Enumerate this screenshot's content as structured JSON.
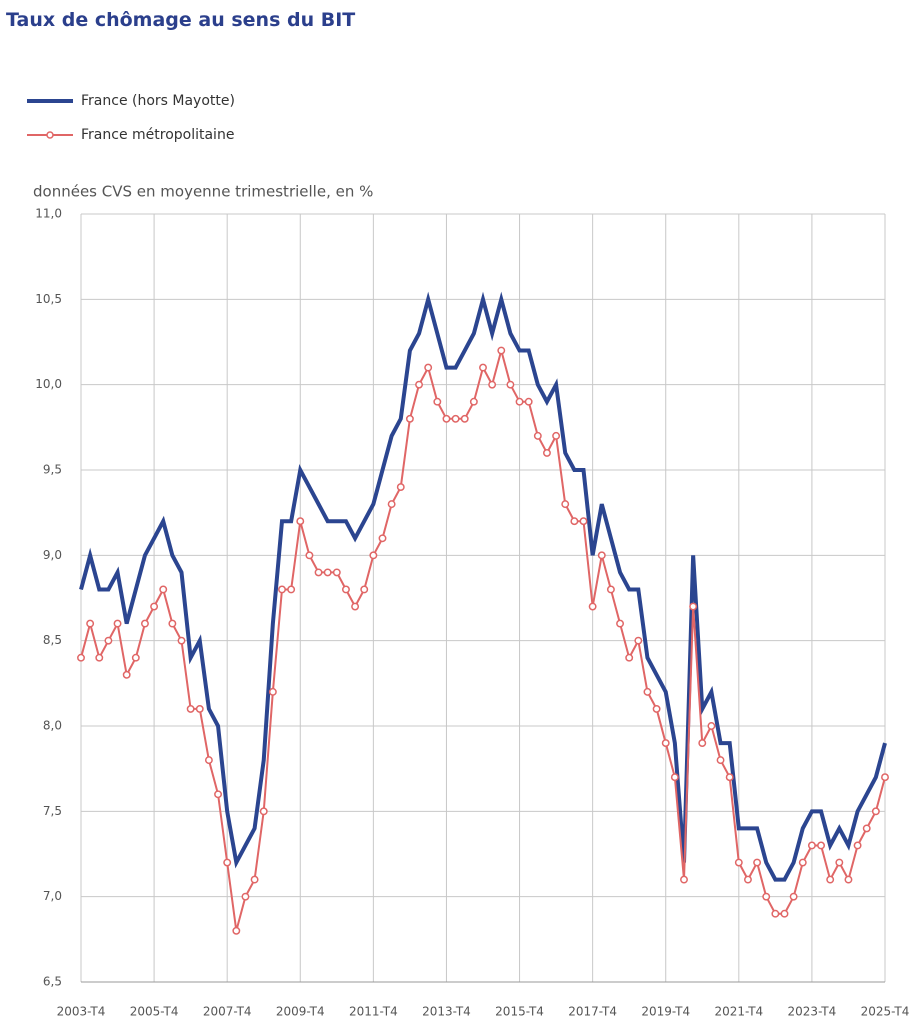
{
  "chart_data": {
    "type": "line",
    "title": "Taux de chômage au sens du BIT",
    "subtitle": "données CVS en moyenne trimestrielle, en %",
    "categories": [
      "2003-T4",
      null,
      null,
      null,
      null,
      null,
      null,
      null,
      "2005-T4",
      null,
      null,
      null,
      null,
      null,
      null,
      null,
      "2007-T4",
      null,
      null,
      null,
      null,
      null,
      null,
      null,
      "2009-T4",
      null,
      null,
      null,
      null,
      null,
      null,
      null,
      "2011-T4",
      null,
      null,
      null,
      null,
      null,
      null,
      null,
      "2013-T4",
      null,
      null,
      null,
      null,
      null,
      null,
      null,
      "2015-T4",
      null,
      null,
      null,
      null,
      null,
      null,
      null,
      "2017-T4",
      null,
      null,
      null,
      null,
      null,
      null,
      null,
      "2019-T4",
      null,
      null,
      null,
      null,
      null,
      null,
      null,
      "2021-T4",
      null,
      null,
      null,
      null,
      null,
      null,
      null,
      "2023-T4",
      null,
      null,
      null,
      null,
      null,
      null,
      null,
      "2025-T4"
    ],
    "series": [
      {
        "name": "France (hors Mayotte)",
        "color": "#2b4590",
        "values": [
          8.8,
          9.0,
          8.8,
          8.8,
          8.9,
          8.6,
          8.8,
          9.0,
          9.1,
          9.2,
          9.0,
          8.9,
          8.4,
          8.5,
          8.1,
          8.0,
          7.5,
          7.2,
          7.3,
          7.4,
          7.8,
          8.6,
          9.2,
          9.2,
          9.5,
          9.4,
          9.3,
          9.2,
          9.2,
          9.2,
          9.1,
          9.2,
          9.3,
          9.5,
          9.7,
          9.8,
          10.2,
          10.3,
          10.5,
          10.3,
          10.1,
          10.1,
          10.2,
          10.3,
          10.5,
          10.3,
          10.5,
          10.3,
          10.2,
          10.2,
          10.0,
          9.9,
          10.0,
          9.6,
          9.5,
          9.5,
          9.0,
          9.3,
          9.1,
          8.9,
          8.8,
          8.8,
          8.4,
          8.3,
          8.2,
          7.9,
          7.2,
          9.0,
          8.1,
          8.2,
          7.9,
          7.9,
          7.4,
          7.4,
          7.4,
          7.2,
          7.1,
          7.1,
          7.2,
          7.4,
          7.5,
          7.5,
          7.3,
          7.4,
          7.3,
          7.5,
          7.6,
          7.7,
          7.9
        ]
      },
      {
        "name": "France métropolitaine",
        "color": "#e06666",
        "values": [
          8.4,
          8.6,
          8.4,
          8.5,
          8.6,
          8.3,
          8.4,
          8.6,
          8.7,
          8.8,
          8.6,
          8.5,
          8.1,
          8.1,
          7.8,
          7.6,
          7.2,
          6.8,
          7.0,
          7.1,
          7.5,
          8.2,
          8.8,
          8.8,
          9.2,
          9.0,
          8.9,
          8.9,
          8.9,
          8.8,
          8.7,
          8.8,
          9.0,
          9.1,
          9.3,
          9.4,
          9.8,
          10.0,
          10.1,
          9.9,
          9.8,
          9.8,
          9.8,
          9.9,
          10.1,
          10.0,
          10.2,
          10.0,
          9.9,
          9.9,
          9.7,
          9.6,
          9.7,
          9.3,
          9.2,
          9.2,
          8.7,
          9.0,
          8.8,
          8.6,
          8.4,
          8.5,
          8.2,
          8.1,
          7.9,
          7.7,
          7.1,
          8.7,
          7.9,
          8.0,
          7.8,
          7.7,
          7.2,
          7.1,
          7.2,
          7.0,
          6.9,
          6.9,
          7.0,
          7.2,
          7.3,
          7.3,
          7.1,
          7.2,
          7.1,
          7.3,
          7.4,
          7.5,
          7.7
        ]
      }
    ],
    "ylim": [
      6.5,
      11.0
    ],
    "yticks": [
      {
        "value": 6.5,
        "label": "6,5"
      },
      {
        "value": 7.0,
        "label": "7,0"
      },
      {
        "value": 7.5,
        "label": "7,5"
      },
      {
        "value": 8.0,
        "label": "8,0"
      },
      {
        "value": 8.5,
        "label": "8,5"
      },
      {
        "value": 9.0,
        "label": "9,0"
      },
      {
        "value": 9.5,
        "label": "9,5"
      },
      {
        "value": 10.0,
        "label": "10,0"
      },
      {
        "value": 10.5,
        "label": "10,5"
      },
      {
        "value": 11.0,
        "label": "11,0"
      }
    ],
    "grid": true
  }
}
